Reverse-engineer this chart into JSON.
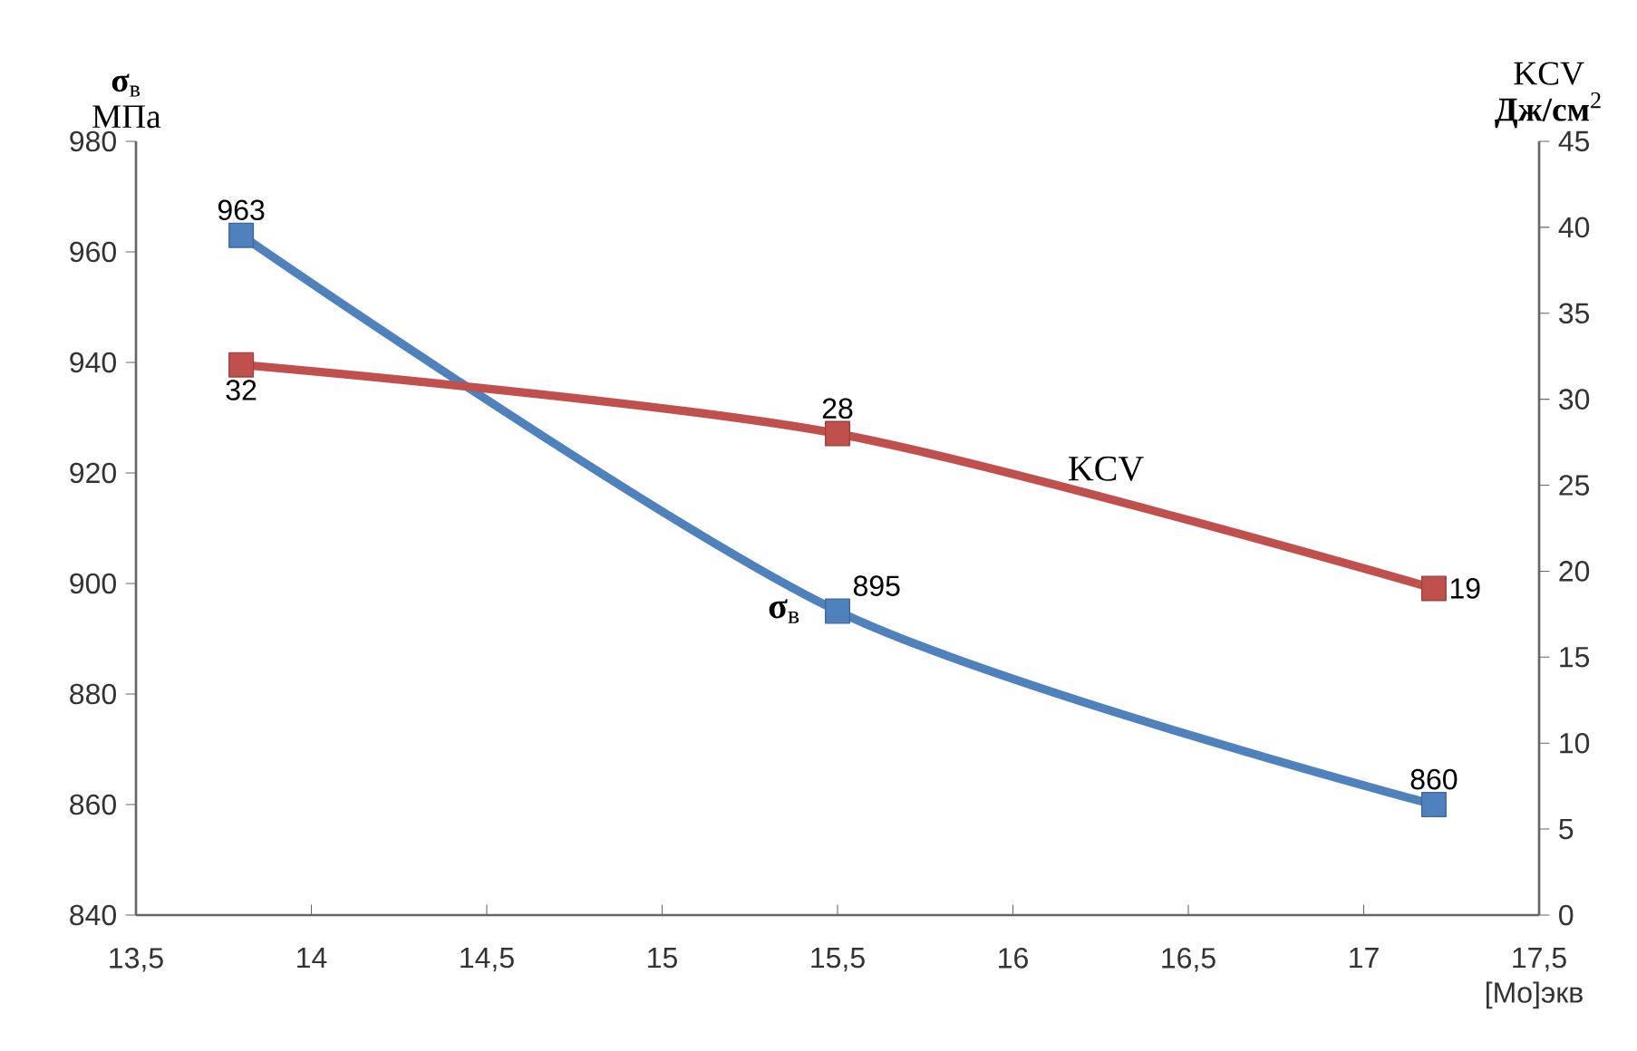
{
  "chart_data": {
    "type": "line",
    "x": [
      13.8,
      15.5,
      17.2
    ],
    "series": [
      {
        "name": "**σ**$_{в}$",
        "color": "#4f81bd",
        "values": [
          963,
          895,
          860
        ]
      },
      {
        "name": "KCV",
        "color": "#c0504d",
        "values": [
          32,
          28,
          19
        ],
        "axis": "y2"
      }
    ],
    "ylabel": "**σ**$_{в}$ МПа",
    "y2label": "KCV **Дж/см**$^{2}$",
    "xlabel": "[Mo]экв",
    "xlim": [
      13.5,
      17.5
    ],
    "xticks": [
      {
        "value": 13.5,
        "label": "13,5"
      },
      14,
      {
        "value": 14.5,
        "label": "14,5"
      },
      15,
      {
        "value": 15.5,
        "label": "15,5"
      },
      16,
      {
        "value": 16.5,
        "label": "16,5"
      },
      17,
      {
        "value": 17.5,
        "label": "17,5"
      }
    ],
    "ylim": [
      840,
      980
    ],
    "yticks": [
      840,
      860,
      880,
      900,
      920,
      940,
      960,
      980
    ],
    "y2lim": [
      0,
      45
    ],
    "y2ticks": [
      0,
      5,
      10,
      15,
      20,
      25,
      30,
      35,
      40,
      45
    ],
    "marker": "square",
    "line_style": "solid",
    "data_labels": true,
    "grid": false
  }
}
